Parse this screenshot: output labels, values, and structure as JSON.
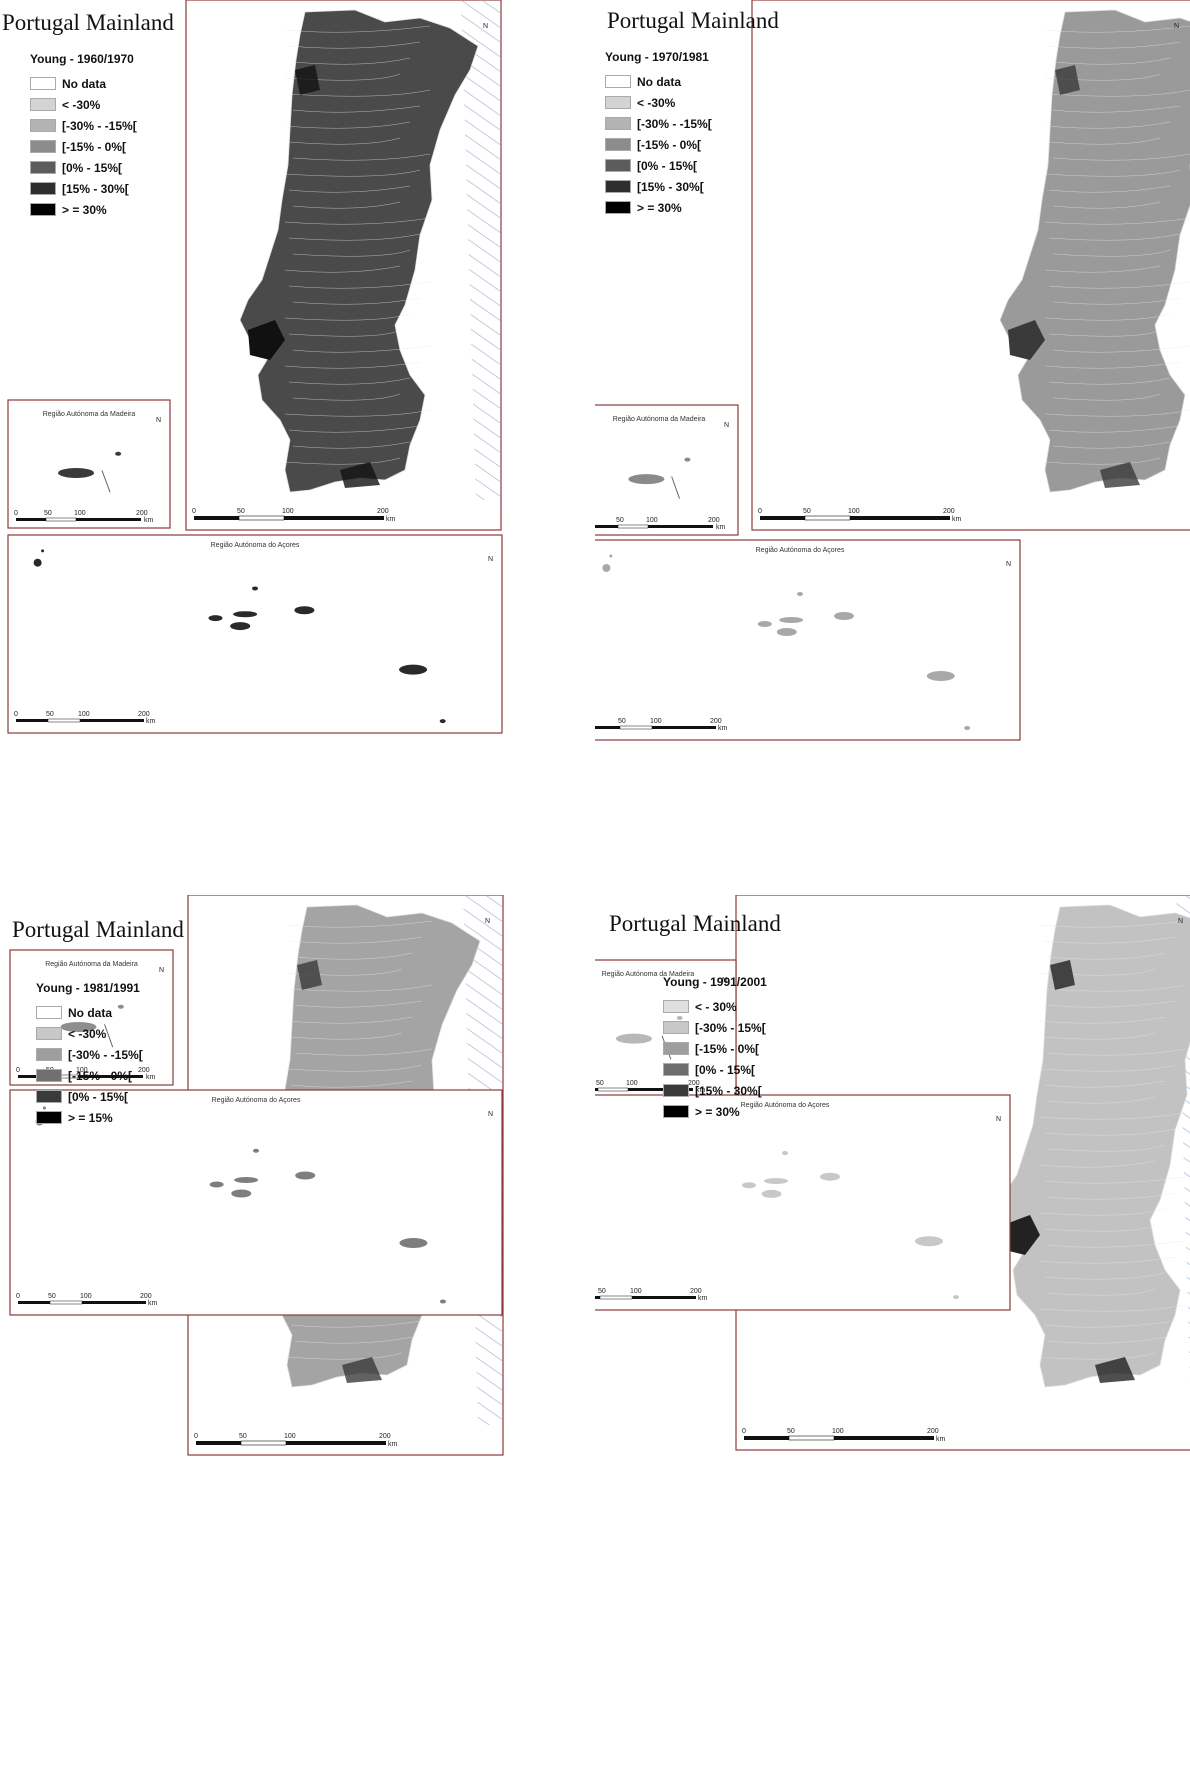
{
  "colors": {
    "no_data": "#ffffff",
    "lt_minus30": "#d4d4d4",
    "minus30_minus15": "#b3b3b3",
    "minus15_0": "#8c8c8c",
    "zero_15": "#5c5c5c",
    "fifteen_30": "#2e2e2e",
    "ge_30": "#000000",
    "hatch": "#8fa5c4",
    "frame": "#8b3a3a"
  },
  "panels": [
    {
      "title": "Portugal Mainland",
      "legend_prefix": "Young - ",
      "legend_period": "1960/1970",
      "mainland_fill": "#4a4a4a",
      "madeira_fill": "#3a3a3a",
      "azores_fill": "#2a2a2a",
      "legend": [
        {
          "label": "No data",
          "color": "#ffffff"
        },
        {
          "label": "< -30%",
          "color": "#d4d4d4"
        },
        {
          "label": "[-30% - -15%[",
          "color": "#b3b3b3"
        },
        {
          "label": "[-15% - 0%[",
          "color": "#8c8c8c"
        },
        {
          "label": "[0% - 15%[",
          "color": "#5c5c5c"
        },
        {
          "label": "[15% - 30%[",
          "color": "#2e2e2e"
        },
        {
          "label": "> = 30%",
          "color": "#000000"
        }
      ],
      "madeira_title": "Região Autónoma da Madeira",
      "azores_title": "Região Autónoma do Açores",
      "scale": [
        "0",
        "50",
        "100",
        "200"
      ],
      "scale_unit": "km",
      "north": "N"
    },
    {
      "title": "Portugal Mainland",
      "legend_prefix": "Young - ",
      "legend_period": "1970/1981",
      "mainland_fill": "#9a9a9a",
      "madeira_fill": "#8a8a8a",
      "azores_fill": "#a8a8a8",
      "legend": [
        {
          "label": "No data",
          "color": "#ffffff"
        },
        {
          "label": "< -30%",
          "color": "#d4d4d4"
        },
        {
          "label": "[-30% - -15%[",
          "color": "#b3b3b3"
        },
        {
          "label": "[-15% - 0%[",
          "color": "#8c8c8c"
        },
        {
          "label": "[0% - 15%[",
          "color": "#5c5c5c"
        },
        {
          "label": "[15% - 30%[",
          "color": "#2e2e2e"
        },
        {
          "label": "> = 30%",
          "color": "#000000"
        }
      ],
      "madeira_title": "Região Autónoma da Madeira",
      "azores_title": "Região Autónoma do Açores",
      "scale": [
        "0",
        "50",
        "100",
        "200"
      ],
      "scale_unit": "km",
      "north": "N"
    },
    {
      "title": "Portugal Mainland",
      "legend_prefix": "Young - ",
      "legend_period": "1981/1991",
      "mainland_fill": "#a4a4a4",
      "madeira_fill": "#8e8e8e",
      "azores_fill": "#7e7e7e",
      "legend": [
        {
          "label": "No data",
          "color": "#ffffff"
        },
        {
          "label": "< -30%",
          "color": "#c8c8c8"
        },
        {
          "label": "[-30% - -15%[",
          "color": "#9e9e9e"
        },
        {
          "label": "[-15% - 0%[",
          "color": "#707070"
        },
        {
          "label": "[0% - 15%[",
          "color": "#3a3a3a"
        },
        {
          "label": "> = 15%",
          "color": "#000000"
        }
      ],
      "madeira_title": "Região Autónoma da Madeira",
      "azores_title": "Região Autónoma do Açores",
      "scale": [
        "0",
        "50",
        "100",
        "200"
      ],
      "scale_unit": "km",
      "north": "N"
    },
    {
      "title": "Portugal Mainland",
      "legend_prefix": "Young - ",
      "legend_period": "1991/2001",
      "mainland_fill": "#c2c2c2",
      "madeira_fill": "#b8b8b8",
      "azores_fill": "#c8c8c8",
      "legend": [
        {
          "label": "< - 30%",
          "color": "#e0e0e0"
        },
        {
          "label": "[-30% - 15%[",
          "color": "#c8c8c8"
        },
        {
          "label": "[-15% - 0%[",
          "color": "#9e9e9e"
        },
        {
          "label": "[0% - 15%[",
          "color": "#6e6e6e"
        },
        {
          "label": "[15% - 30%[",
          "color": "#3a3a3a"
        },
        {
          "label": "> = 30%",
          "color": "#000000"
        }
      ],
      "madeira_title": "Região Autónoma da Madeira",
      "azores_title": "Região Autónoma do Açores",
      "scale": [
        "0",
        "50",
        "100",
        "200"
      ],
      "scale_unit": "km",
      "north": "N"
    }
  ]
}
